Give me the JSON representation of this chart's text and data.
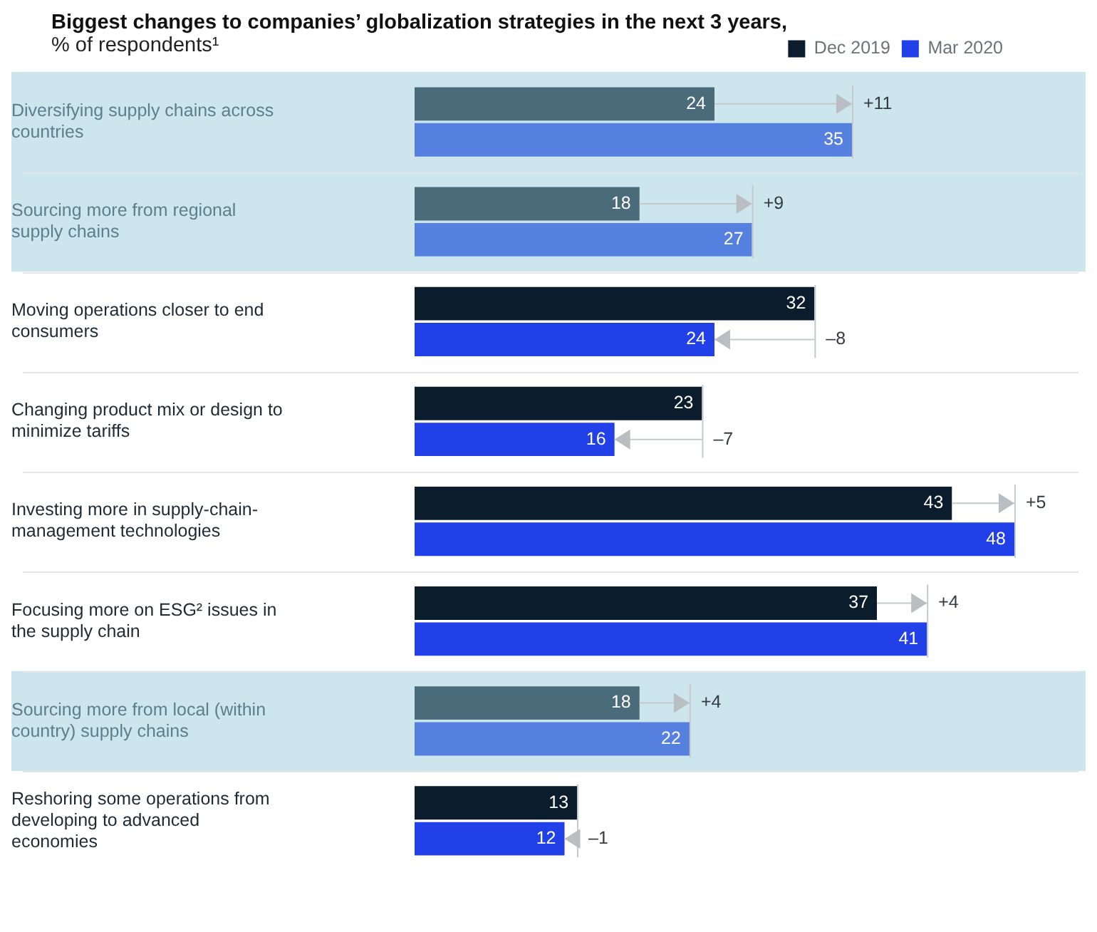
{
  "chart_data": {
    "type": "bar",
    "orientation": "horizontal",
    "title": "Biggest changes to companies’ globalization strategies in the next 3 years,",
    "subtitle": "% of respondents¹",
    "categories": [
      "Diversifying supply chains across countries",
      "Sourcing more from regional supply chains",
      "Moving operations closer to end consumers",
      "Changing product mix or design to minimize tariffs",
      "Investing more in supply-chain-management technologies",
      "Focusing more on ESG² issues in the supply chain",
      "Sourcing more from local (within country) supply chains",
      "Reshoring some operations from developing to advanced economies"
    ],
    "series": [
      {
        "name": "Dec 2019",
        "color": "#0b1d2c",
        "values": [
          24,
          18,
          32,
          23,
          43,
          37,
          18,
          13
        ],
        "colors": [
          "#4a6b7a",
          "#4a6b7a",
          "#0b1d2c",
          "#0b1d2c",
          "#0b1d2c",
          "#0b1d2c",
          "#4a6b7a",
          "#0b1d2c"
        ]
      },
      {
        "name": "Mar 2020",
        "color": "#2140e8",
        "values": [
          35,
          27,
          24,
          16,
          48,
          41,
          22,
          12
        ],
        "colors": [
          "#5580df",
          "#5580df",
          "#2140e8",
          "#2140e8",
          "#2140e8",
          "#2140e8",
          "#5580df",
          "#2140e8"
        ]
      }
    ],
    "annotations": [
      {
        "text": "+11",
        "x": 35,
        "y": "Diversifying supply chains across countries"
      },
      {
        "text": "+9",
        "x": 27,
        "y": "Sourcing more from regional supply chains"
      },
      {
        "text": "–8",
        "x": 32,
        "y": "Moving operations closer to end consumers"
      },
      {
        "text": "–7",
        "x": 23,
        "y": "Changing product mix or design to minimize tariffs"
      },
      {
        "text": "+5",
        "x": 48,
        "y": "Investing more in supply-chain-management technologies"
      },
      {
        "text": "+4",
        "x": 41,
        "y": "Focusing more on ESG² issues in the supply chain"
      },
      {
        "text": "+4",
        "x": 22,
        "y": "Sourcing more from local (within country) supply chains"
      },
      {
        "text": "–1",
        "x": 13,
        "y": "Reshoring some operations from developing to advanced economies"
      }
    ],
    "bands": [
      {
        "axis": "y",
        "from": "Diversifying supply chains across countries",
        "to": "Sourcing more from regional supply chains",
        "color": "#cde5ed"
      },
      {
        "axis": "y",
        "from": "Sourcing more from local (within country) supply chains",
        "to": "Sourcing more from local (within country) supply chains",
        "color": "#cde5ed"
      }
    ],
    "data_labels": true,
    "grid": "y",
    "legend": "top right"
  }
}
